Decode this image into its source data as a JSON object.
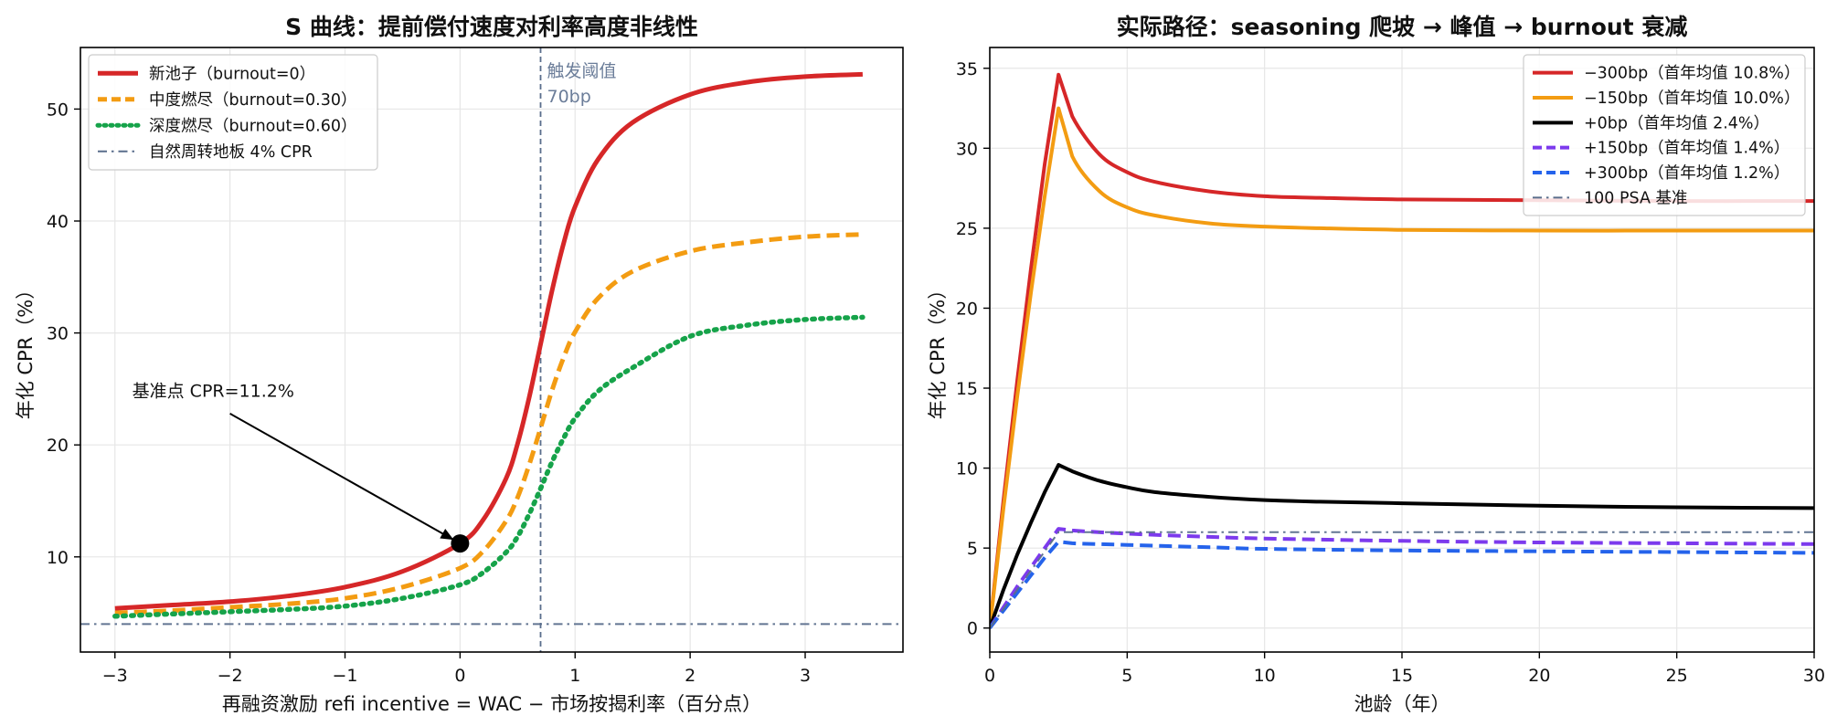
{
  "chart_data": [
    {
      "type": "line",
      "title": "S 曲线：提前偿付速度对利率高度非线性",
      "xlabel": "再融资激励 refi incentive = WAC − 市场按揭利率（百分点）",
      "ylabel": "年化 CPR（%）",
      "xlim": [
        -3.3,
        3.85
      ],
      "ylim": [
        1.5,
        55.5
      ],
      "xticks": [
        -3,
        -2,
        -1,
        0,
        1,
        2,
        3
      ],
      "xtick_labels": [
        "−3",
        "−2",
        "−1",
        "0",
        "1",
        "2",
        "3"
      ],
      "yticks": [
        10,
        20,
        30,
        40,
        50
      ],
      "grid": true,
      "legend_position": "top-left",
      "series": [
        {
          "name": "新池子（burnout=0）",
          "color": "#d62728",
          "style": "solid",
          "x": [
            -3,
            -2.5,
            -2,
            -1.5,
            -1,
            -0.5,
            0,
            0.2,
            0.4,
            0.5,
            0.6,
            0.7,
            0.8,
            0.9,
            1,
            1.2,
            1.5,
            2,
            2.5,
            3,
            3.5
          ],
          "y": [
            5.4,
            5.7,
            6.0,
            6.5,
            7.3,
            8.7,
            11.2,
            13.3,
            17.0,
            20.1,
            24.2,
            29.0,
            33.8,
            38.0,
            41.3,
            45.5,
            48.8,
            51.3,
            52.4,
            52.9,
            53.1
          ]
        },
        {
          "name": "中度燃尽（burnout=0.30）",
          "color": "#f39c12",
          "style": "dashed",
          "x": [
            -3,
            -2.5,
            -2,
            -1.5,
            -1,
            -0.5,
            0,
            0.2,
            0.4,
            0.5,
            0.6,
            0.7,
            0.8,
            0.9,
            1,
            1.2,
            1.5,
            2,
            2.5,
            3,
            3.5
          ],
          "y": [
            5.0,
            5.2,
            5.5,
            5.8,
            6.3,
            7.3,
            9.0,
            10.5,
            13.2,
            15.3,
            18.2,
            21.5,
            24.9,
            27.8,
            30.1,
            33.1,
            35.5,
            37.3,
            38.1,
            38.6,
            38.8
          ]
        },
        {
          "name": "深度燃尽（burnout=0.60）",
          "color": "#16a34a",
          "style": "dotted",
          "x": [
            -3,
            -2.5,
            -2,
            -1.5,
            -1,
            -0.5,
            0,
            0.2,
            0.4,
            0.5,
            0.6,
            0.7,
            0.8,
            0.9,
            1,
            1.2,
            1.5,
            2,
            2.5,
            3,
            3.5
          ],
          "y": [
            4.7,
            4.9,
            5.1,
            5.3,
            5.6,
            6.3,
            7.5,
            8.6,
            10.4,
            11.8,
            13.8,
            16.1,
            18.5,
            20.6,
            22.4,
            24.8,
            26.9,
            29.7,
            30.7,
            31.2,
            31.4
          ]
        },
        {
          "name": "自然周转地板 4% CPR",
          "color": "#5a6e8c",
          "style": "dashdot",
          "x": [
            -3.3,
            3.85
          ],
          "y": [
            4,
            4
          ]
        }
      ],
      "threshold": {
        "x": 0.7,
        "label_line1": "触发阈值",
        "label_line2": "70bp",
        "color": "#5a6e8c"
      },
      "annotation": {
        "text": "基准点 CPR=11.2%",
        "point": [
          0,
          11.2
        ],
        "text_at": [
          -2.85,
          24.3
        ]
      }
    },
    {
      "type": "line",
      "title": "实际路径：seasoning 爬坡 → 峰值 → burnout 衰减",
      "xlabel": "池龄（年）",
      "ylabel": "年化 CPR（%）",
      "xlim": [
        0,
        30
      ],
      "ylim": [
        -1.5,
        36.3
      ],
      "xticks": [
        0,
        5,
        10,
        15,
        20,
        25,
        30
      ],
      "xtick_labels": [
        "0",
        "5",
        "10",
        "15",
        "20",
        "25",
        "30"
      ],
      "yticks": [
        0,
        5,
        10,
        15,
        20,
        25,
        30,
        35
      ],
      "grid": true,
      "legend_position": "top-right",
      "series": [
        {
          "name": "−300bp（首年均值 10.8%）",
          "color": "#d62728",
          "style": "solid",
          "x": [
            0,
            0.5,
            1,
            1.5,
            2,
            2.5,
            3,
            4,
            5,
            6,
            8,
            10,
            12,
            15,
            20,
            25,
            30
          ],
          "y": [
            0,
            8,
            15.5,
            22.5,
            29,
            34.6,
            32,
            29.6,
            28.5,
            27.9,
            27.3,
            27.0,
            26.9,
            26.8,
            26.75,
            26.7,
            26.7
          ]
        },
        {
          "name": "−150bp（首年均值 10.0%）",
          "color": "#f39c12",
          "style": "solid",
          "x": [
            0,
            0.5,
            1,
            1.5,
            2,
            2.5,
            3,
            4,
            5,
            6,
            8,
            10,
            12,
            15,
            20,
            25,
            30
          ],
          "y": [
            0,
            7.5,
            14.5,
            21,
            27,
            32.5,
            29.5,
            27.3,
            26.3,
            25.8,
            25.3,
            25.1,
            25.0,
            24.9,
            24.85,
            24.85,
            24.85
          ]
        },
        {
          "name": "+0bp（首年均值 2.4%）",
          "color": "#000000",
          "style": "solid",
          "x": [
            0,
            0.5,
            1,
            1.5,
            2,
            2.5,
            3,
            4,
            5,
            6,
            8,
            10,
            12,
            15,
            20,
            25,
            30
          ],
          "y": [
            0,
            2.4,
            4.6,
            6.6,
            8.5,
            10.2,
            9.8,
            9.2,
            8.8,
            8.5,
            8.2,
            8.0,
            7.9,
            7.8,
            7.65,
            7.55,
            7.5
          ]
        },
        {
          "name": "+150bp（首年均值 1.4%）",
          "color": "#7c3aed",
          "style": "dashed",
          "x": [
            0,
            0.5,
            1,
            1.5,
            2,
            2.5,
            3,
            5,
            8,
            10,
            15,
            20,
            25,
            30
          ],
          "y": [
            0,
            1.3,
            2.6,
            3.8,
            5.0,
            6.2,
            6.1,
            5.9,
            5.7,
            5.6,
            5.45,
            5.35,
            5.3,
            5.25
          ]
        },
        {
          "name": "+300bp（首年均值 1.2%）",
          "color": "#2563eb",
          "style": "dashed",
          "x": [
            0,
            0.5,
            1,
            1.5,
            2,
            2.5,
            3,
            5,
            8,
            10,
            15,
            20,
            25,
            30
          ],
          "y": [
            0,
            1.1,
            2.2,
            3.3,
            4.4,
            5.4,
            5.3,
            5.2,
            5.05,
            4.95,
            4.85,
            4.8,
            4.75,
            4.7
          ]
        },
        {
          "name": "100 PSA 基准",
          "color": "#5a6e8c",
          "style": "dashdot",
          "x": [
            0,
            2.5,
            30
          ],
          "y": [
            0,
            6,
            6
          ]
        }
      ]
    }
  ]
}
